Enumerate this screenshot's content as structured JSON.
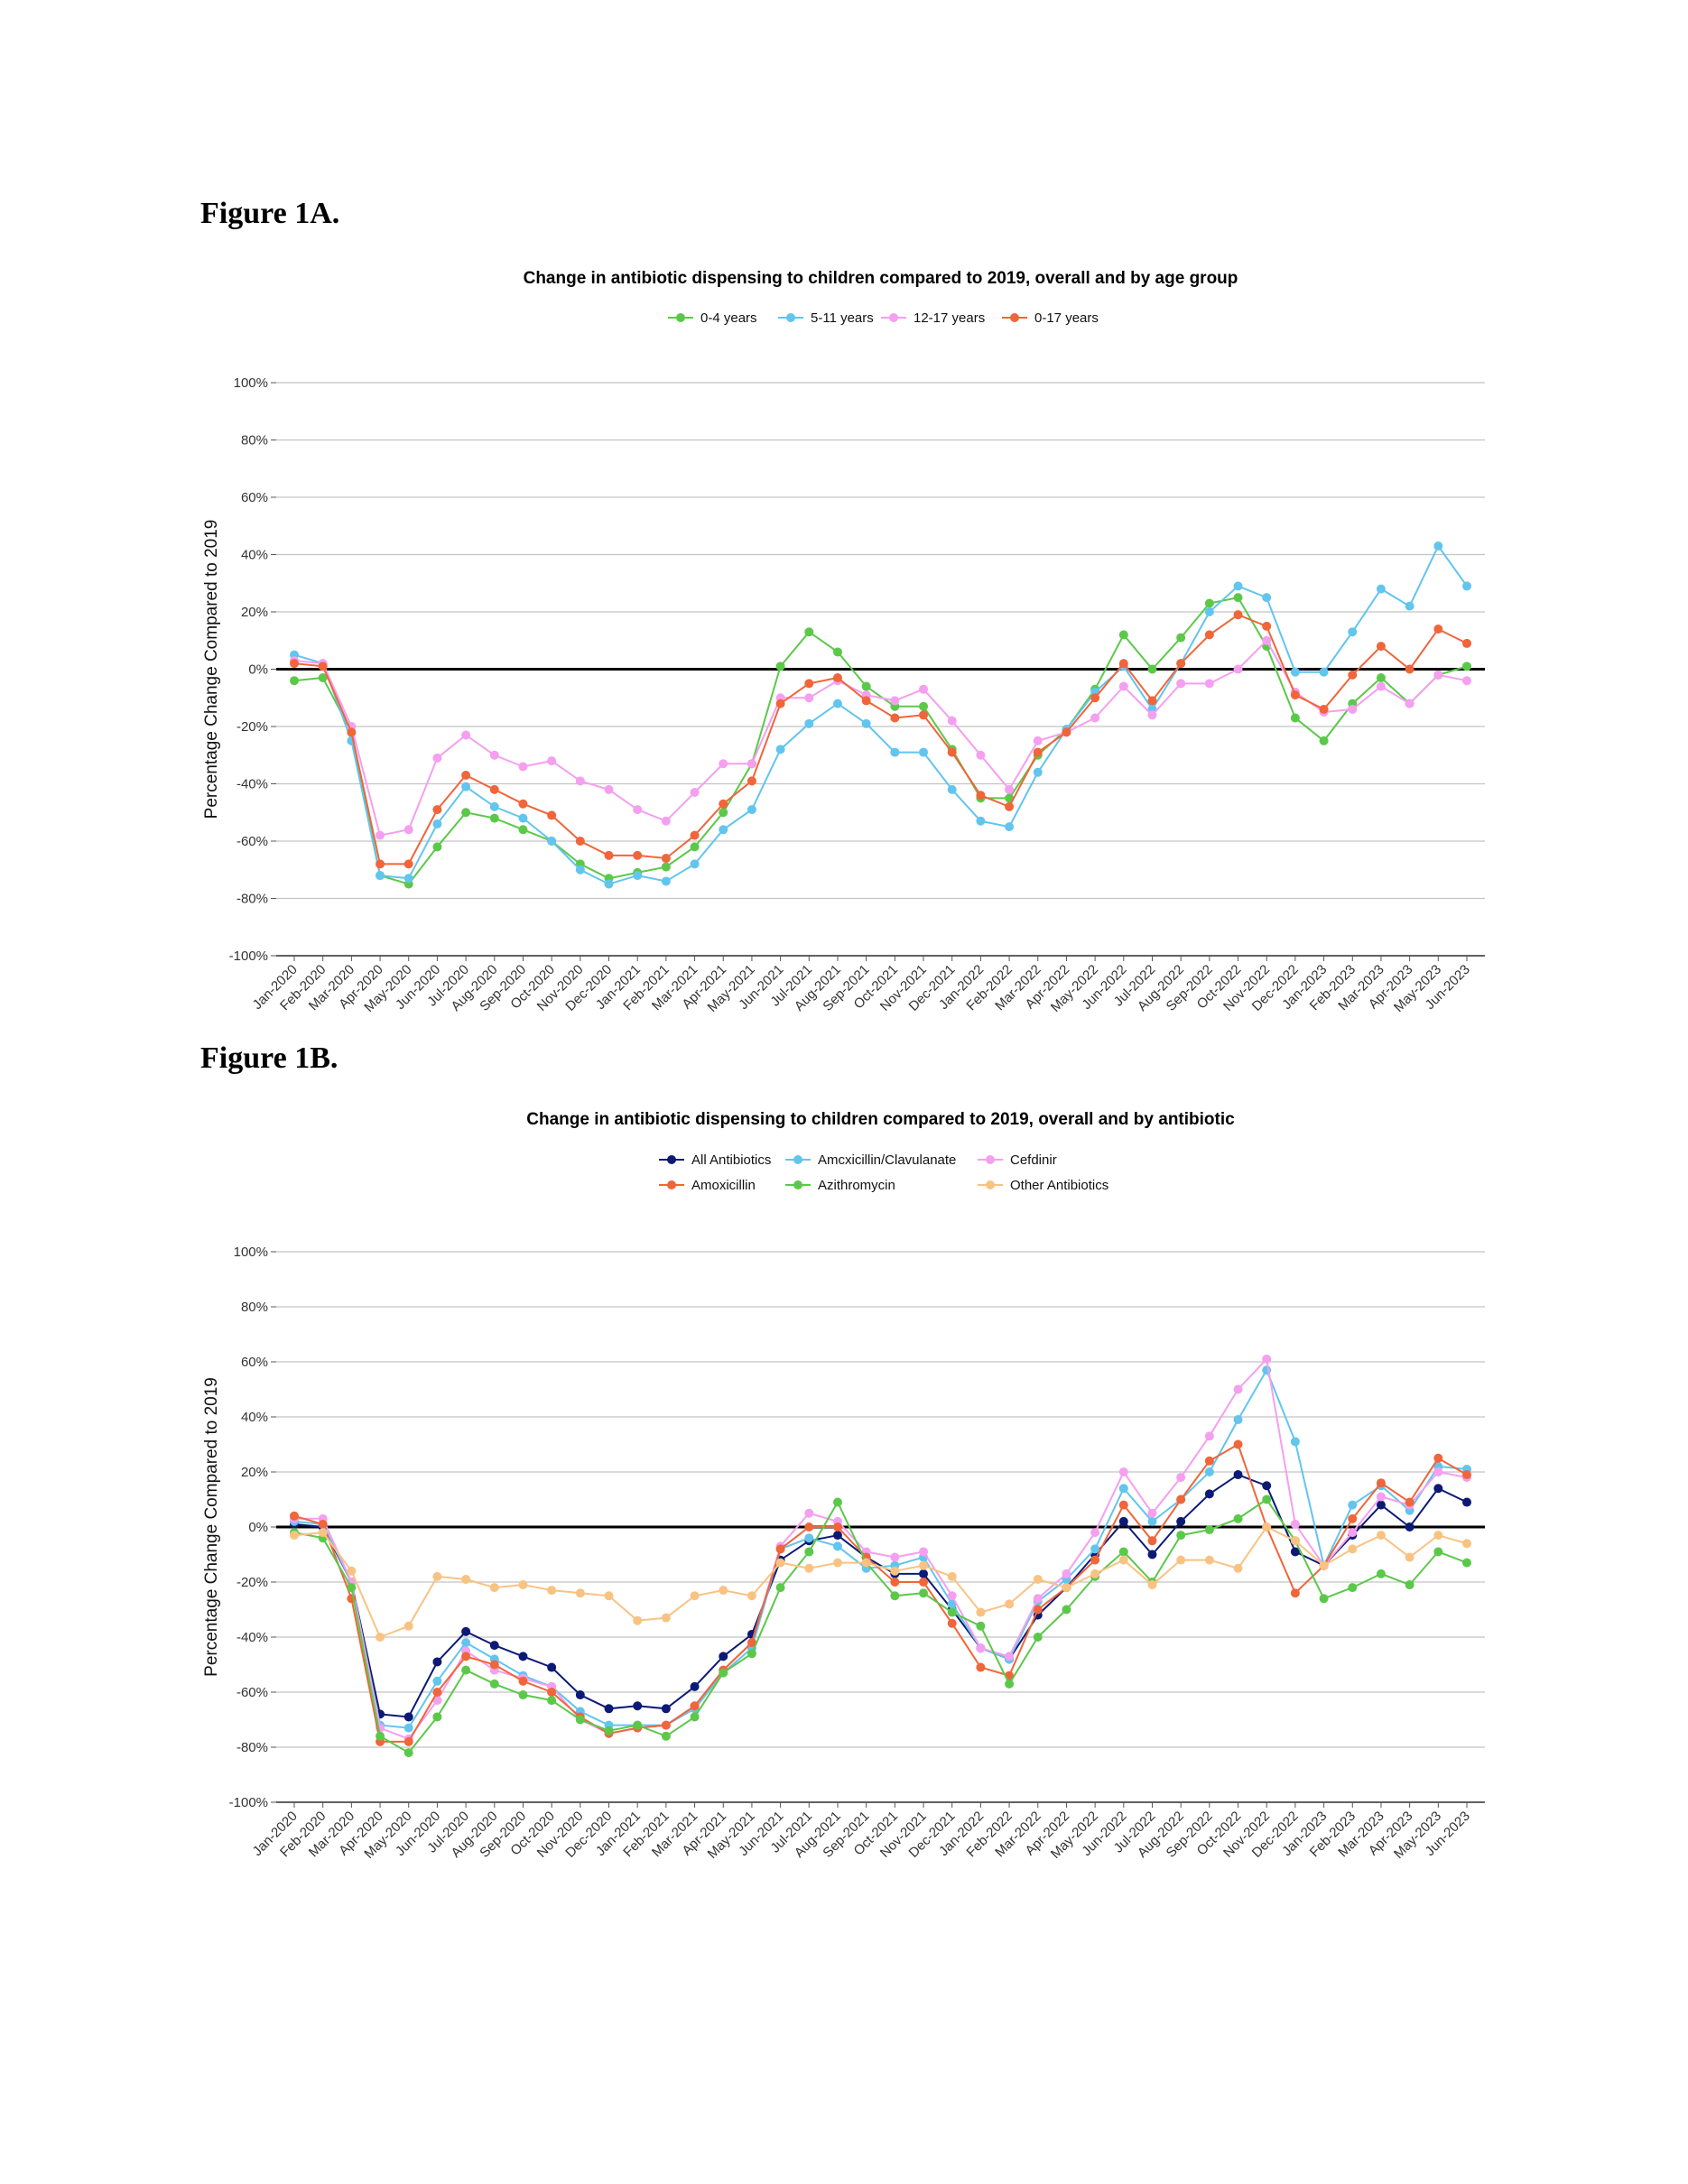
{
  "headings": {
    "a": "Figure 1A.",
    "b": "Figure 1B."
  },
  "chart_data": [
    {
      "type": "line",
      "title": "Change in antibiotic dispensing to children compared to 2019, overall and by age group",
      "xlabel": "",
      "ylabel": "Percentage Change Compared to 2019",
      "ylim": [
        -100,
        100
      ],
      "yticks": [
        "-100%",
        "-80%",
        "-60%",
        "-40%",
        "-20%",
        "0%",
        "20%",
        "40%",
        "60%",
        "80%",
        "100%"
      ],
      "legend_position": "top",
      "grid": true,
      "reference_line": 0,
      "categories": [
        "Jan-2020",
        "Feb-2020",
        "Mar-2020",
        "Apr-2020",
        "May-2020",
        "Jun-2020",
        "Jul-2020",
        "Aug-2020",
        "Sep-2020",
        "Oct-2020",
        "Nov-2020",
        "Dec-2020",
        "Jan-2021",
        "Feb-2021",
        "Mar-2021",
        "Apr-2021",
        "May-2021",
        "Jun-2021",
        "Jul-2021",
        "Aug-2021",
        "Sep-2021",
        "Oct-2021",
        "Nov-2021",
        "Dec-2021",
        "Jan-2022",
        "Feb-2022",
        "Mar-2022",
        "Apr-2022",
        "May-2022",
        "Jun-2022",
        "Jul-2022",
        "Aug-2022",
        "Sep-2022",
        "Oct-2022",
        "Nov-2022",
        "Dec-2022",
        "Jan-2023",
        "Feb-2023",
        "Mar-2023",
        "Apr-2023",
        "May-2023",
        "Jun-2023"
      ],
      "series": [
        {
          "name": "0-4 years",
          "color": "#5cc84a",
          "values": [
            -4,
            -3,
            -22,
            -72,
            -75,
            -62,
            -50,
            -52,
            -56,
            -60,
            -68,
            -73,
            -71,
            -69,
            -62,
            -50,
            -33,
            1,
            13,
            6,
            -6,
            -13,
            -13,
            -28,
            -45,
            -45,
            -30,
            -21,
            -7,
            12,
            0,
            11,
            23,
            25,
            8,
            -17,
            -25,
            -12,
            -3,
            -12,
            -2,
            1
          ]
        },
        {
          "name": "5-11 years",
          "color": "#62c5ee",
          "values": [
            5,
            2,
            -25,
            -72,
            -73,
            -54,
            -41,
            -48,
            -52,
            -60,
            -70,
            -75,
            -72,
            -74,
            -68,
            -56,
            -49,
            -28,
            -19,
            -12,
            -19,
            -29,
            -29,
            -42,
            -53,
            -55,
            -36,
            -21,
            -8,
            1,
            -14,
            2,
            20,
            29,
            25,
            -1,
            -1,
            13,
            28,
            22,
            43,
            29
          ]
        },
        {
          "name": "12-17 years",
          "color": "#f59ff0",
          "values": [
            3,
            2,
            -20,
            -58,
            -56,
            -31,
            -23,
            -30,
            -34,
            -32,
            -39,
            -42,
            -49,
            -53,
            -43,
            -33,
            -33,
            -10,
            -10,
            -4,
            -9,
            -11,
            -7,
            -18,
            -30,
            -42,
            -25,
            -22,
            -17,
            -6,
            -16,
            -5,
            -5,
            0,
            10,
            -8,
            -15,
            -14,
            -6,
            -12,
            -2,
            -4
          ]
        },
        {
          "name": "0-17 years",
          "color": "#f0653a",
          "values": [
            2,
            1,
            -22,
            -68,
            -68,
            -49,
            -37,
            -42,
            -47,
            -51,
            -60,
            -65,
            -65,
            -66,
            -58,
            -47,
            -39,
            -12,
            -5,
            -3,
            -11,
            -17,
            -16,
            -29,
            -44,
            -48,
            -29,
            -22,
            -10,
            2,
            -11,
            2,
            12,
            19,
            15,
            -9,
            -14,
            -2,
            8,
            0,
            14,
            9
          ]
        }
      ]
    },
    {
      "type": "line",
      "title": "Change in antibiotic dispensing to children compared to 2019, overall and by antibiotic",
      "xlabel": "",
      "ylabel": "Percentage Change Compared to 2019",
      "ylim": [
        -100,
        100
      ],
      "yticks": [
        "-100%",
        "-80%",
        "-60%",
        "-40%",
        "-20%",
        "0%",
        "20%",
        "40%",
        "60%",
        "80%",
        "100%"
      ],
      "legend_position": "top",
      "grid": true,
      "reference_line": 0,
      "categories": [
        "Jan-2020",
        "Feb-2020",
        "Mar-2020",
        "Apr-2020",
        "May-2020",
        "Jun-2020",
        "Jul-2020",
        "Aug-2020",
        "Sep-2020",
        "Oct-2020",
        "Nov-2020",
        "Dec-2020",
        "Jan-2021",
        "Feb-2021",
        "Mar-2021",
        "Apr-2021",
        "May-2021",
        "Jun-2021",
        "Jul-2021",
        "Aug-2021",
        "Sep-2021",
        "Oct-2021",
        "Nov-2021",
        "Dec-2021",
        "Jan-2022",
        "Feb-2022",
        "Mar-2022",
        "Apr-2022",
        "May-2022",
        "Jun-2022",
        "Jul-2022",
        "Aug-2022",
        "Sep-2022",
        "Oct-2022",
        "Nov-2022",
        "Dec-2022",
        "Jan-2023",
        "Feb-2023",
        "Mar-2023",
        "Apr-2023",
        "May-2023",
        "Jun-2023"
      ],
      "series": [
        {
          "name": "All Antibiotics",
          "color": "#0c1a75",
          "values": [
            1,
            0,
            -20,
            -68,
            -69,
            -49,
            -38,
            -43,
            -47,
            -51,
            -61,
            -66,
            -65,
            -66,
            -58,
            -47,
            -39,
            -12,
            -5,
            -3,
            -11,
            -17,
            -17,
            -30,
            -44,
            -48,
            -32,
            -22,
            -10,
            2,
            -10,
            2,
            12,
            19,
            15,
            -9,
            -14,
            -3,
            8,
            0,
            14,
            9
          ]
        },
        {
          "name": "Amcxicillin/Clavulanate",
          "color": "#62c5ee",
          "values": [
            2,
            1,
            -20,
            -72,
            -73,
            -56,
            -42,
            -48,
            -54,
            -58,
            -67,
            -72,
            -72,
            -72,
            -66,
            -53,
            -44,
            -8,
            -4,
            -7,
            -15,
            -14,
            -11,
            -28,
            -44,
            -48,
            -27,
            -19,
            -8,
            14,
            2,
            10,
            20,
            39,
            57,
            31,
            -14,
            8,
            15,
            6,
            22,
            21
          ]
        },
        {
          "name": "Cefdinir",
          "color": "#f59ff0",
          "values": [
            3,
            3,
            -20,
            -73,
            -77,
            -63,
            -45,
            -52,
            -55,
            -58,
            -70,
            -75,
            -73,
            -72,
            -65,
            -52,
            -42,
            -7,
            5,
            2,
            -9,
            -11,
            -9,
            -25,
            -44,
            -47,
            -26,
            -17,
            -2,
            20,
            5,
            18,
            33,
            50,
            61,
            1,
            -14,
            -2,
            11,
            8,
            20,
            18
          ]
        },
        {
          "name": "Amoxicillin",
          "color": "#f0653a",
          "values": [
            4,
            1,
            -26,
            -78,
            -78,
            -60,
            -47,
            -50,
            -56,
            -60,
            -69,
            -75,
            -73,
            -72,
            -65,
            -52,
            -42,
            -8,
            0,
            0,
            -11,
            -20,
            -20,
            -35,
            -51,
            -54,
            -30,
            -22,
            -12,
            8,
            -5,
            10,
            24,
            30,
            0,
            -24,
            -14,
            3,
            16,
            9,
            25,
            19
          ]
        },
        {
          "name": "Azithromycin",
          "color": "#5cc84a",
          "values": [
            -2,
            -4,
            -22,
            -76,
            -82,
            -69,
            -52,
            -57,
            -61,
            -63,
            -70,
            -74,
            -72,
            -76,
            -69,
            -53,
            -46,
            -22,
            -9,
            9,
            -13,
            -25,
            -24,
            -31,
            -36,
            -57,
            -40,
            -30,
            -18,
            -9,
            -20,
            -3,
            -1,
            3,
            10,
            -5,
            -26,
            -22,
            -17,
            -21,
            -9,
            -13
          ]
        },
        {
          "name": "Other Antibiotics",
          "color": "#f8c382",
          "values": [
            -3,
            -2,
            -16,
            -40,
            -36,
            -18,
            -19,
            -22,
            -21,
            -23,
            -24,
            -25,
            -34,
            -33,
            -25,
            -23,
            -25,
            -13,
            -15,
            -13,
            -13,
            -16,
            -14,
            -18,
            -31,
            -28,
            -19,
            -22,
            -17,
            -12,
            -21,
            -12,
            -12,
            -15,
            0,
            -5,
            -14,
            -8,
            -3,
            -11,
            -3,
            -6
          ]
        }
      ]
    }
  ]
}
